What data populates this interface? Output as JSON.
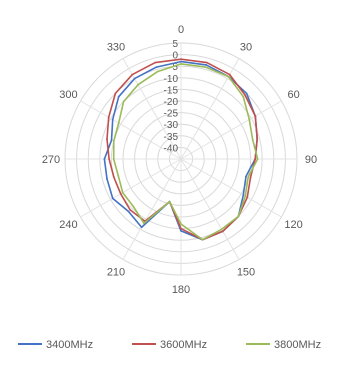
{
  "chart_data": {
    "type": "polar-line",
    "title": "",
    "angle_unit": "deg",
    "angle_ticks": [
      "0",
      "30",
      "60",
      "90",
      "120",
      "150",
      "180",
      "210",
      "240",
      "270",
      "300",
      "330"
    ],
    "radial_ticks": [
      "5",
      "0",
      "-5",
      "-10",
      "-15",
      "-20",
      "-25",
      "-30",
      "-35",
      "-40"
    ],
    "radial_range": [
      -45,
      5
    ],
    "grid": true,
    "legend_position": "bottom",
    "angles": [
      0,
      15,
      30,
      45,
      60,
      75,
      90,
      105,
      120,
      135,
      150,
      165,
      180,
      195,
      210,
      225,
      240,
      255,
      270,
      285,
      300,
      315,
      330,
      345
    ],
    "series": [
      {
        "name": "3400MHz",
        "color": "#4472C4",
        "values": [
          -3,
          -3,
          -4,
          -5,
          -8,
          -11,
          -13,
          -16,
          -14,
          -10,
          -9,
          -9,
          -14,
          -26,
          -11,
          -13,
          -11,
          -12,
          -12,
          -14,
          -11,
          -7,
          -5,
          -4
        ]
      },
      {
        "name": "3600MHz",
        "color": "#C0504D",
        "values": [
          -2,
          -2,
          -3,
          -6,
          -8,
          -11,
          -13,
          -14,
          -12,
          -10,
          -9,
          -9,
          -15,
          -26,
          -14,
          -14,
          -15,
          -15,
          -14,
          -12,
          -9,
          -5,
          -3,
          -2
        ]
      },
      {
        "name": "3800MHz",
        "color": "#9BBB59",
        "values": [
          -4,
          -4,
          -4,
          -7,
          -11,
          -13,
          -12,
          -15,
          -13,
          -10,
          -10,
          -9,
          -17,
          -26,
          -13,
          -16,
          -16,
          -17,
          -16,
          -15,
          -14,
          -10,
          -8,
          -6
        ]
      }
    ]
  }
}
